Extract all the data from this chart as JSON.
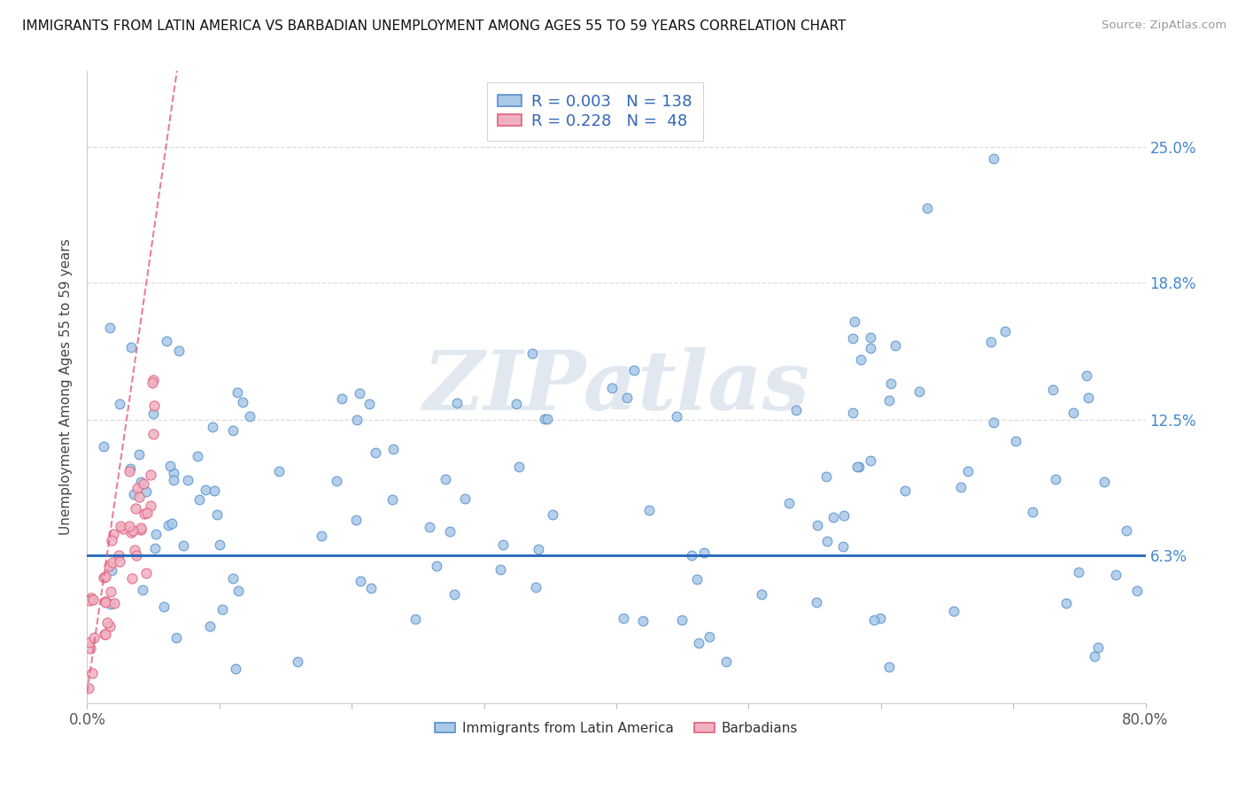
{
  "title": "IMMIGRANTS FROM LATIN AMERICA VS BARBADIAN UNEMPLOYMENT AMONG AGES 55 TO 59 YEARS CORRELATION CHART",
  "source": "Source: ZipAtlas.com",
  "ylabel": "Unemployment Among Ages 55 to 59 years",
  "xlim": [
    0.0,
    0.8
  ],
  "ylim": [
    -0.005,
    0.285
  ],
  "xtick_pos": [
    0.0,
    0.1,
    0.2,
    0.3,
    0.4,
    0.5,
    0.6,
    0.7,
    0.8
  ],
  "xtick_labels": [
    "0.0%",
    "",
    "",
    "",
    "",
    "",
    "",
    "",
    "80.0%"
  ],
  "ytick_pos": [
    0.063,
    0.125,
    0.188,
    0.25
  ],
  "ytick_labels": [
    "6.3%",
    "12.5%",
    "18.8%",
    "25.0%"
  ],
  "series1_face": "#aac8e8",
  "series1_edge": "#5590cc",
  "series2_face": "#f0b0c0",
  "series2_edge": "#e06080",
  "trend1_color": "#2266bb",
  "trend2_color": "#e06080",
  "R1": 0.003,
  "N1": 138,
  "R2": 0.228,
  "N2": 48,
  "watermark": "ZIPatlas",
  "legend_label1": "Immigrants from Latin America",
  "legend_label2": "Barbadians",
  "blue_trend_intercept": 0.063,
  "blue_trend_slope": 0.0,
  "pink_trend_intercept": 0.0,
  "pink_trend_slope": 4.2
}
